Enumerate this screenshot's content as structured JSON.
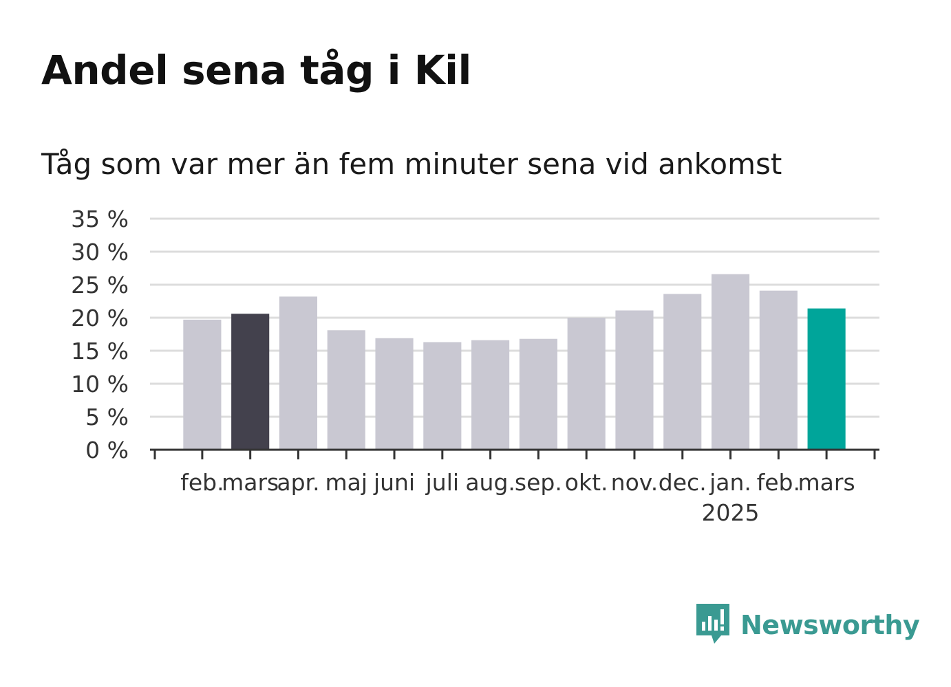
{
  "chart_data": {
    "type": "bar",
    "title": "Andel sena tåg i Kil",
    "subtitle": "Tåg som var mer än fem minuter sena vid ankomst",
    "categories": [
      "feb.",
      "mars",
      "apr.",
      "maj",
      "juni",
      "juli",
      "aug.",
      "sep.",
      "okt.",
      "nov.",
      "dec.",
      "jan.",
      "feb.",
      "mars"
    ],
    "year_labels": [
      {
        "index": 11,
        "label": "2025"
      }
    ],
    "values": [
      19.7,
      20.6,
      23.2,
      18.1,
      16.9,
      16.3,
      16.6,
      16.8,
      20.0,
      21.1,
      23.6,
      26.6,
      24.1,
      21.4
    ],
    "bar_colors": [
      "#c9c8d2",
      "#43414d",
      "#c9c8d2",
      "#c9c8d2",
      "#c9c8d2",
      "#c9c8d2",
      "#c9c8d2",
      "#c9c8d2",
      "#c9c8d2",
      "#c9c8d2",
      "#c9c8d2",
      "#c9c8d2",
      "#c9c8d2",
      "#00a59a"
    ],
    "yticks": [
      "0 %",
      "5 %",
      "10 %",
      "15 %",
      "20 %",
      "25 %",
      "30 %",
      "35 %"
    ],
    "ylim": [
      0,
      35
    ],
    "ytick_step": 5,
    "grid": true,
    "xlabel": "",
    "ylabel": ""
  },
  "brand": {
    "name": "Newsworthy",
    "icon": "newsworthy-logo-icon",
    "color": "#3a9a92"
  }
}
